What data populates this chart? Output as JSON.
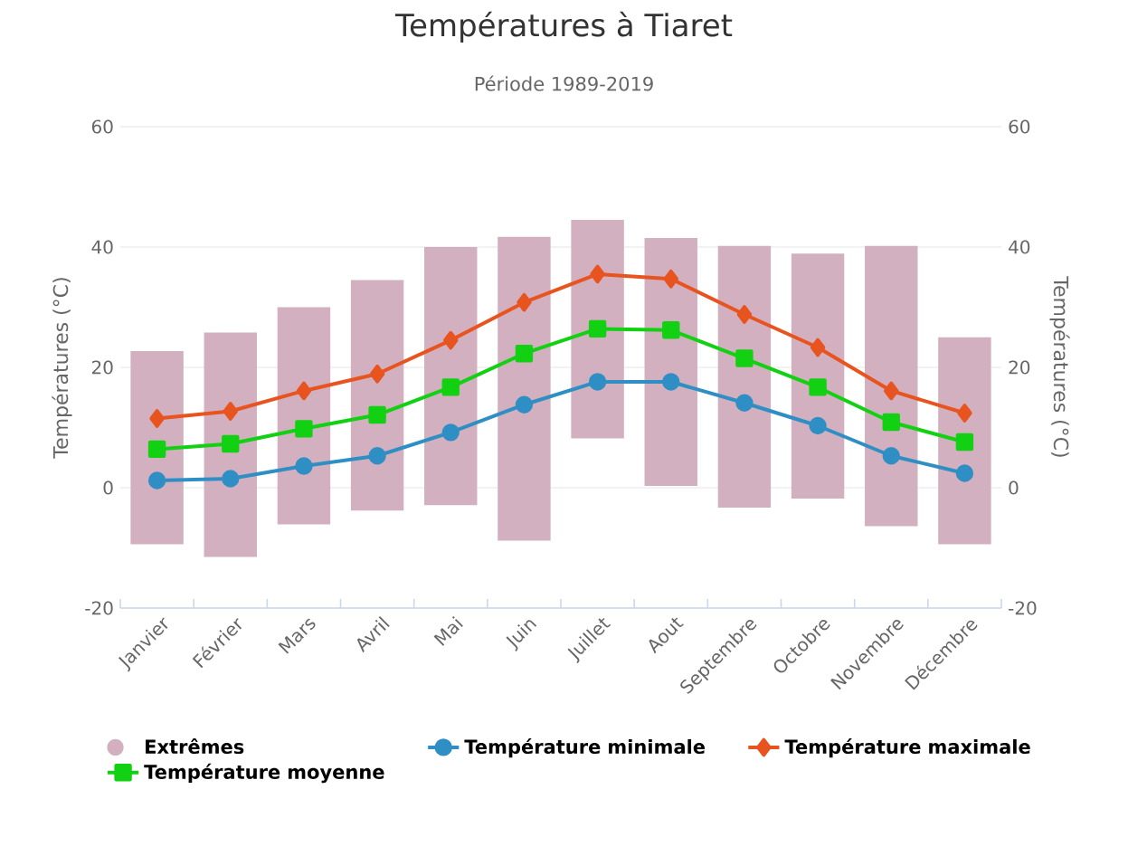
{
  "chart_data": {
    "type": "bar",
    "title": "Températures à Tiaret",
    "subtitle": "Période 1989-2019",
    "ylabel": "Températures (°C)",
    "y2label": "Températures (°C)",
    "categories": [
      "Janvier",
      "Février",
      "Mars",
      "Avril",
      "Mai",
      "Juin",
      "Juillet",
      "Aout",
      "Septembre",
      "Octobre",
      "Novembre",
      "Décembre"
    ],
    "series": [
      {
        "name": "Extrêmes",
        "color": "#d3b0bf",
        "base": [
          -9.4,
          -11.5,
          -6.1,
          -3.8,
          -2.9,
          -8.8,
          8.2,
          0.3,
          -3.3,
          -1.8,
          -6.4,
          -9.4
        ],
        "values": [
          32.1,
          37.3,
          36.1,
          38.3,
          42.9,
          50.5,
          36.3,
          41.2,
          43.5,
          40.7,
          46.6,
          34.4
        ]
      },
      {
        "name": "Température minimale",
        "type": "line",
        "color": "#2f8fc4",
        "marker": "circle",
        "values": [
          1.2,
          1.5,
          3.6,
          5.3,
          9.2,
          13.8,
          17.6,
          17.6,
          14.1,
          10.3,
          5.3,
          2.4
        ]
      },
      {
        "name": "Température maximale",
        "type": "line",
        "color": "#e8541f",
        "marker": "diamond",
        "values": [
          11.5,
          12.7,
          16.1,
          18.9,
          24.5,
          30.8,
          35.5,
          34.7,
          28.8,
          23.3,
          16.1,
          12.4
        ]
      },
      {
        "name": "Température moyenne",
        "type": "line",
        "color": "#12d012",
        "marker": "square",
        "values": [
          6.4,
          7.3,
          9.8,
          12.1,
          16.7,
          22.3,
          26.4,
          26.2,
          21.5,
          16.7,
          10.9,
          7.6
        ]
      }
    ],
    "ylim": [
      -20,
      60
    ],
    "yticks": [
      -20,
      0,
      20,
      40,
      60
    ],
    "y2lim": [
      -20,
      60
    ],
    "y2ticks": [
      -20,
      0,
      20,
      40,
      60
    ],
    "grid": "y",
    "legend": "bottom",
    "line_style": "solid"
  }
}
